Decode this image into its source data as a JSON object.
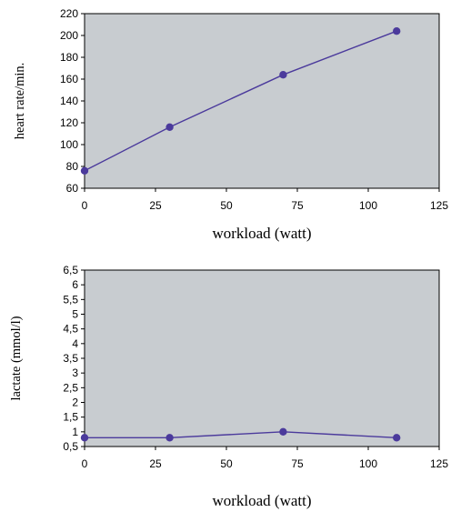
{
  "chart_data": [
    {
      "type": "line",
      "title": "",
      "xlabel": "workload (watt)",
      "ylabel": "heart rate/min.",
      "xlim": [
        0,
        125
      ],
      "ylim": [
        60,
        220
      ],
      "x_ticks": [
        0,
        25,
        50,
        75,
        100,
        125
      ],
      "x_tick_labels": [
        "0",
        "25",
        "50",
        "75",
        "100",
        "125"
      ],
      "y_ticks": [
        60,
        80,
        100,
        120,
        140,
        160,
        180,
        200,
        220
      ],
      "y_tick_labels": [
        "60",
        "80",
        "100",
        "120",
        "140",
        "160",
        "180",
        "200",
        "220"
      ],
      "grid": false,
      "background_color": "#c8ccd0",
      "series_color": "#4b3a9c",
      "series": [
        {
          "x": [
            0,
            30,
            70,
            110
          ],
          "values": [
            76,
            116,
            164,
            204
          ]
        }
      ]
    },
    {
      "type": "line",
      "title": "",
      "xlabel": "workload (watt)",
      "ylabel": "lactate (mmol/l)",
      "xlim": [
        0,
        125
      ],
      "ylim": [
        0.5,
        6.5
      ],
      "x_ticks": [
        0,
        25,
        50,
        75,
        100,
        125
      ],
      "x_tick_labels": [
        "0",
        "25",
        "50",
        "75",
        "100",
        "125"
      ],
      "y_ticks": [
        0.5,
        1,
        1.5,
        2,
        2.5,
        3,
        3.5,
        4,
        4.5,
        5,
        5.5,
        6,
        6.5
      ],
      "y_tick_labels": [
        "0,5",
        "1",
        "1,5",
        "2",
        "2,5",
        "3",
        "3,5",
        "4",
        "4,5",
        "5",
        "5,5",
        "6",
        "6,5"
      ],
      "grid": false,
      "background_color": "#c8ccd0",
      "series_color": "#4b3a9c",
      "series": [
        {
          "x": [
            0,
            30,
            70,
            110
          ],
          "values": [
            0.8,
            0.8,
            1.0,
            0.8
          ]
        }
      ]
    }
  ]
}
